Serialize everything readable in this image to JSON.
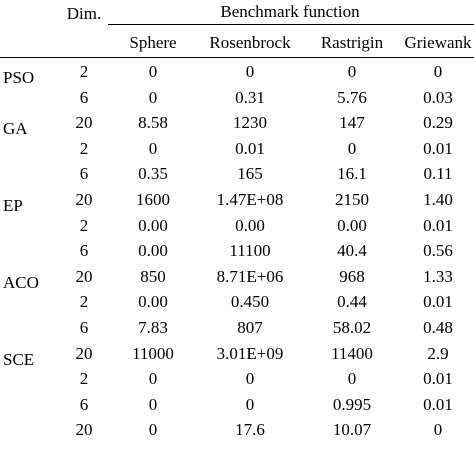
{
  "header": {
    "dim_label": "Dim.",
    "group_label": "Benchmark function",
    "functions": [
      "Sphere",
      "Rosenbrock",
      "Rastrigin",
      "Griewank"
    ]
  },
  "rows": [
    {
      "algorithm": "PSO",
      "dim": "2",
      "values": [
        "0",
        "0",
        "0",
        "0"
      ]
    },
    {
      "algorithm": "",
      "dim": "6",
      "values": [
        "0",
        "0.31",
        "5.76",
        "0.03"
      ]
    },
    {
      "algorithm": "GA",
      "dim": "20",
      "values": [
        "8.58",
        "1230",
        "147",
        "0.29"
      ]
    },
    {
      "algorithm": "",
      "dim": "2",
      "values": [
        "0",
        "0.01",
        "0",
        "0.01"
      ]
    },
    {
      "algorithm": "",
      "dim": "6",
      "values": [
        "0.35",
        "165",
        "16.1",
        "0.11"
      ]
    },
    {
      "algorithm": "EP",
      "dim": "20",
      "values": [
        "1600",
        "1.47E+08",
        "2150",
        "1.40"
      ]
    },
    {
      "algorithm": "",
      "dim": "2",
      "values": [
        "0.00",
        "0.00",
        "0.00",
        "0.01"
      ]
    },
    {
      "algorithm": "",
      "dim": "6",
      "values": [
        "0.00",
        "11100",
        "40.4",
        "0.56"
      ]
    },
    {
      "algorithm": "ACO",
      "dim": "20",
      "values": [
        "850",
        "8.71E+06",
        "968",
        "1.33"
      ]
    },
    {
      "algorithm": "",
      "dim": "2",
      "values": [
        "0.00",
        "0.450",
        "0.44",
        "0.01"
      ]
    },
    {
      "algorithm": "",
      "dim": "6",
      "values": [
        "7.83",
        "807",
        "58.02",
        "0.48"
      ]
    },
    {
      "algorithm": "SCE",
      "dim": "20",
      "values": [
        "11000",
        "3.01E+09",
        "11400",
        "2.9"
      ]
    },
    {
      "algorithm": "",
      "dim": "2",
      "values": [
        "0",
        "0",
        "0",
        "0.01"
      ]
    },
    {
      "algorithm": "",
      "dim": "6",
      "values": [
        "0",
        "0",
        "0.995",
        "0.01"
      ]
    },
    {
      "algorithm": "",
      "dim": "20",
      "values": [
        "0",
        "17.6",
        "10.07",
        "0"
      ]
    }
  ]
}
